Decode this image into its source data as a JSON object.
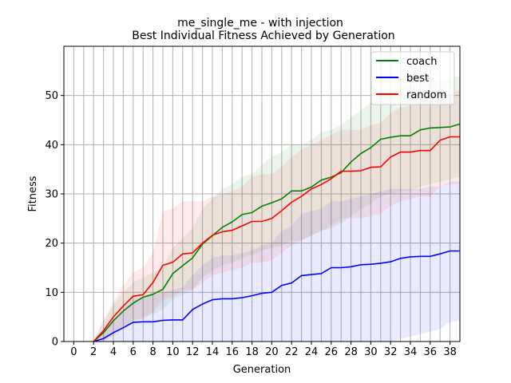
{
  "chart_data": {
    "type": "line",
    "title_line1": "me_single_me - with injection",
    "title_line2": "Best Individual Fitness Achieved by Generation",
    "xlabel": "Generation",
    "ylabel": "Fitness",
    "xlim": [
      -1,
      39
    ],
    "ylim": [
      0,
      60
    ],
    "xticks": [
      0,
      2,
      4,
      6,
      8,
      10,
      12,
      14,
      16,
      18,
      20,
      22,
      24,
      26,
      28,
      30,
      32,
      34,
      36,
      38
    ],
    "yticks": [
      0,
      10,
      20,
      30,
      40,
      50
    ],
    "grid": true,
    "grid_x_step": 1,
    "legend_position": "top-right",
    "x": [
      2,
      3,
      4,
      5,
      6,
      7,
      8,
      9,
      10,
      11,
      12,
      13,
      14,
      15,
      16,
      17,
      18,
      19,
      20,
      21,
      22,
      23,
      24,
      25,
      26,
      27,
      28,
      29,
      30,
      31,
      32,
      33,
      34,
      35,
      36,
      37,
      38,
      39
    ],
    "series": [
      {
        "name": "coach",
        "color": "#008000",
        "values": [
          0,
          1.8,
          4.2,
          6.2,
          7.8,
          9.0,
          9.6,
          10.6,
          13.8,
          15.4,
          17.0,
          19.8,
          21.5,
          23.2,
          24.3,
          25.8,
          26.2,
          27.5,
          28.2,
          29.0,
          30.6,
          30.6,
          31.4,
          32.8,
          33.4,
          34.3,
          36.5,
          38.2,
          39.4,
          41.1,
          41.5,
          41.8,
          41.8,
          43.0,
          43.4,
          43.5,
          43.6,
          44.2
        ],
        "lower": [
          0,
          0,
          1.0,
          2.5,
          4.0,
          5.0,
          5.5,
          6.5,
          8.5,
          9.5,
          10.5,
          13.0,
          14.5,
          15.5,
          16.0,
          17.0,
          17.5,
          18.5,
          19.0,
          19.5,
          20.5,
          20.5,
          21.5,
          22.5,
          23.0,
          24.0,
          25.5,
          27.0,
          28.0,
          29.5,
          30.0,
          30.5,
          30.5,
          31.5,
          32.0,
          32.5,
          33.0,
          33.5
        ],
        "upper": [
          0,
          4.0,
          7.5,
          10.0,
          12.0,
          13.0,
          14.0,
          15.0,
          19.0,
          21.0,
          23.0,
          27.0,
          29.0,
          31.0,
          32.0,
          33.5,
          34.0,
          36.0,
          37.5,
          38.5,
          40.0,
          40.0,
          41.0,
          42.5,
          43.0,
          44.0,
          45.5,
          47.0,
          48.5,
          50.0,
          51.0,
          52.0,
          52.0,
          53.0,
          53.5,
          53.5,
          53.5,
          54.0
        ]
      },
      {
        "name": "best",
        "color": "#0000ff",
        "values": [
          0,
          0.6,
          1.8,
          2.8,
          3.9,
          4.0,
          4.0,
          4.3,
          4.4,
          4.4,
          6.5,
          7.6,
          8.5,
          8.7,
          8.7,
          8.9,
          9.3,
          9.8,
          10.0,
          11.4,
          11.9,
          13.4,
          13.6,
          13.8,
          15.0,
          15.0,
          15.2,
          15.6,
          15.7,
          15.9,
          16.2,
          16.9,
          17.2,
          17.3,
          17.3,
          17.8,
          18.4,
          18.4
        ],
        "lower": [
          0,
          0,
          0,
          0,
          0,
          0,
          0,
          0,
          0,
          0,
          0,
          0,
          0,
          0,
          0,
          0,
          0,
          0,
          0,
          0,
          0,
          0,
          0,
          0,
          0,
          0,
          0,
          0,
          0,
          0,
          0,
          0.5,
          1.0,
          1.5,
          2.0,
          2.5,
          4.0,
          4.2
        ],
        "upper": [
          0,
          2.0,
          4.5,
          6.5,
          8.5,
          9.0,
          9.5,
          10.0,
          10.5,
          11.0,
          13.5,
          15.5,
          17.0,
          17.5,
          17.5,
          18.0,
          18.5,
          19.5,
          20.0,
          22.5,
          23.5,
          26.0,
          26.5,
          27.0,
          28.5,
          28.5,
          29.0,
          29.5,
          30.0,
          30.5,
          31.0,
          31.0,
          31.0,
          31.0,
          31.5,
          31.5,
          32.5,
          32.5
        ]
      },
      {
        "name": "random",
        "color": "#ff0000",
        "values": [
          0,
          2.2,
          5.0,
          7.2,
          9.2,
          9.5,
          12.0,
          15.5,
          16.1,
          17.8,
          18.0,
          20.0,
          21.6,
          22.3,
          22.6,
          23.5,
          24.4,
          24.4,
          25.0,
          26.6,
          28.3,
          29.5,
          31.0,
          31.9,
          33.1,
          34.6,
          34.6,
          34.7,
          35.4,
          35.5,
          37.5,
          38.5,
          38.5,
          38.8,
          38.8,
          40.9,
          41.6,
          41.6
        ],
        "lower": [
          0,
          0,
          1.5,
          3.0,
          4.5,
          4.5,
          6.0,
          8.5,
          9.0,
          10.5,
          10.5,
          12.0,
          13.5,
          14.0,
          14.5,
          15.0,
          16.0,
          16.0,
          16.5,
          18.0,
          19.5,
          20.5,
          21.5,
          22.5,
          23.5,
          25.0,
          25.0,
          25.0,
          25.5,
          26.0,
          27.5,
          28.5,
          29.0,
          29.5,
          29.5,
          31.5,
          32.0,
          32.0
        ],
        "upper": [
          0,
          4.5,
          8.0,
          11.5,
          14.0,
          15.0,
          18.0,
          26.5,
          27.0,
          28.5,
          28.5,
          28.5,
          29.5,
          30.0,
          30.5,
          31.5,
          33.5,
          34.0,
          34.0,
          35.5,
          37.5,
          39.0,
          40.0,
          41.0,
          42.0,
          43.0,
          43.0,
          43.0,
          44.0,
          44.5,
          46.5,
          47.5,
          48.0,
          48.5,
          48.5,
          50.0,
          50.5,
          51.0
        ]
      }
    ]
  }
}
